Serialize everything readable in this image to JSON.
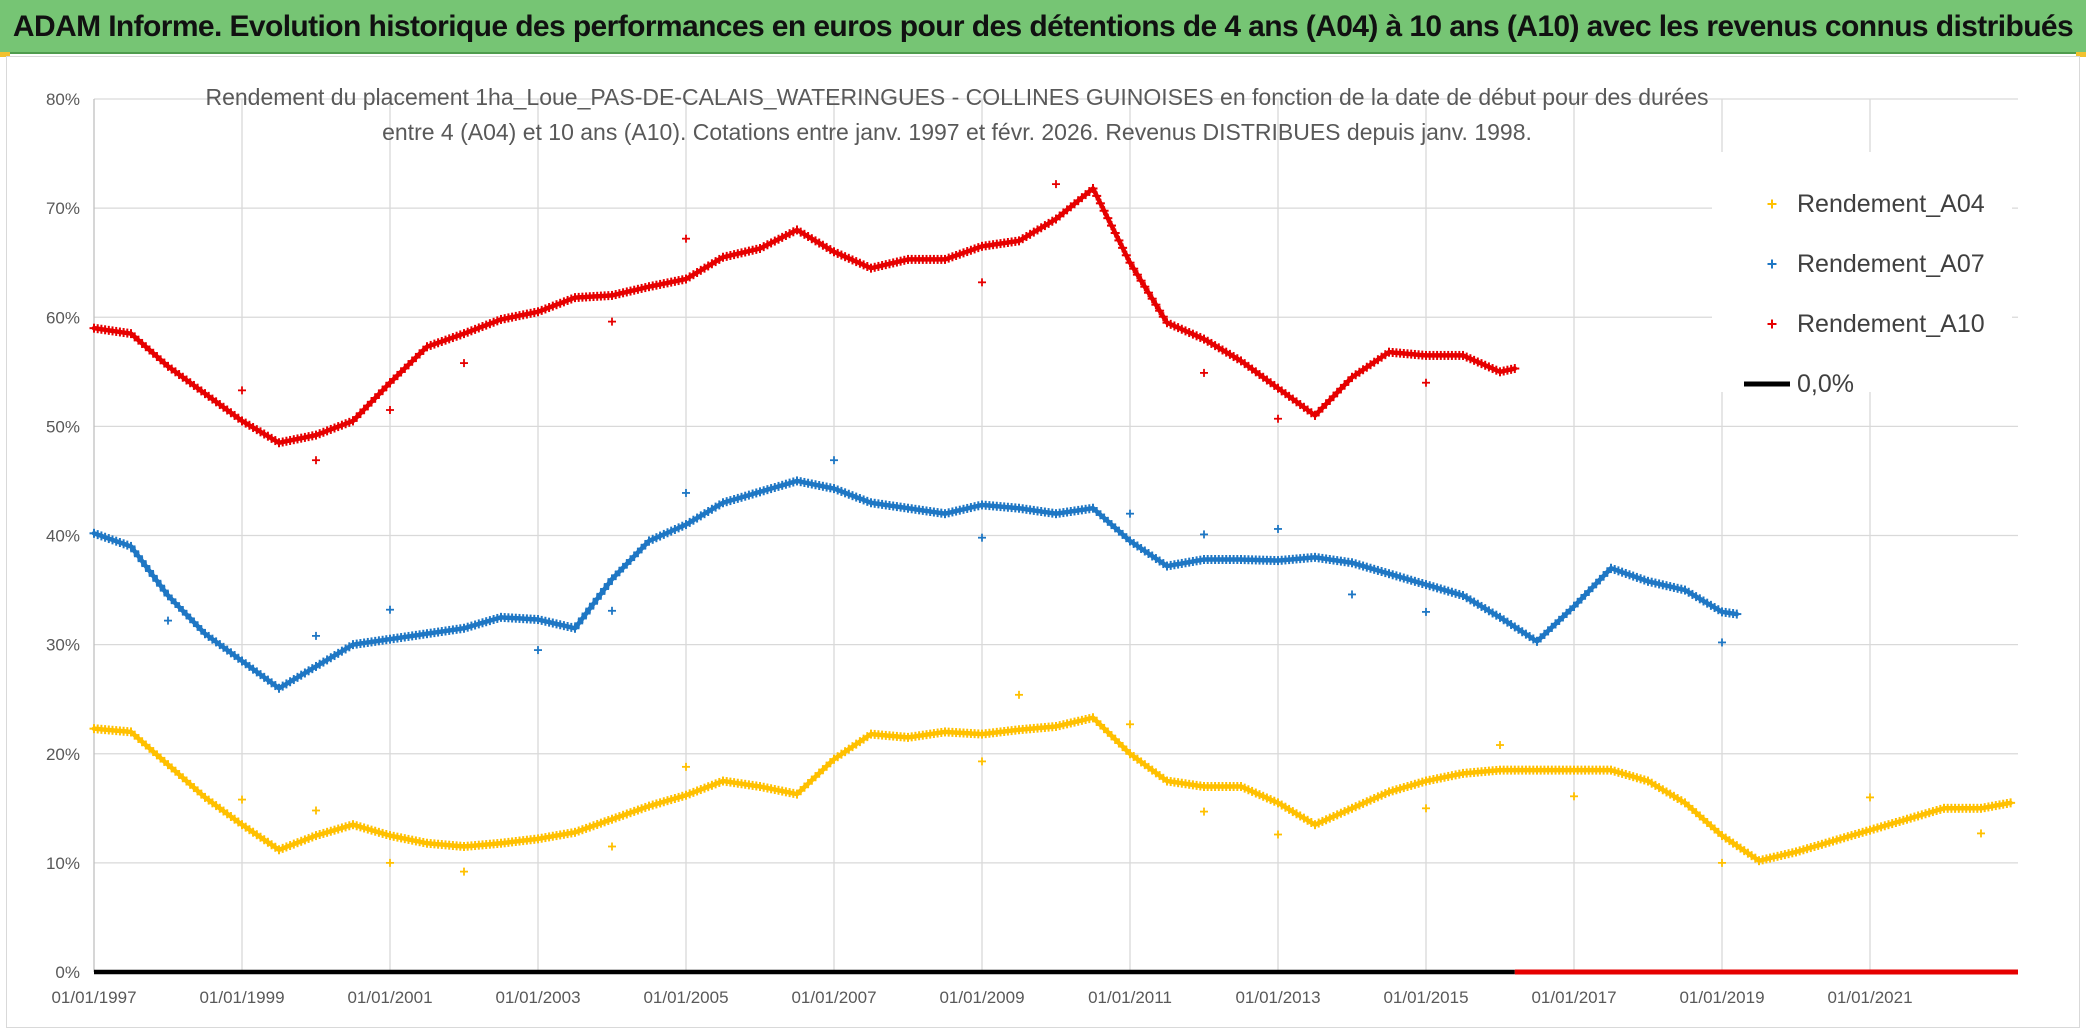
{
  "banner": {
    "title": "ADAM Informe. Evolution historique des performances en euros pour des détentions de 4 ans (A04) à 10 ans (A10) avec les revenus connus distribués"
  },
  "chart_data": {
    "type": "scatter",
    "title_line1": "Rendement du placement 1ha_Loue_PAS-DE-CALAIS_WATERINGUES - COLLINES GUINOISES en fonction de la date de début pour des durées",
    "title_line2": "entre 4 (A04) et 10 ans (A10). Cotations entre janv. 1997 et févr. 2026. Revenus DISTRIBUES depuis janv. 1998.",
    "x_range": [
      1997.0,
      2023.0
    ],
    "y_range": [
      0,
      80
    ],
    "y_ticks": [
      0,
      10,
      20,
      30,
      40,
      50,
      60,
      70,
      80
    ],
    "y_tick_labels": [
      "0%",
      "10%",
      "20%",
      "30%",
      "40%",
      "50%",
      "60%",
      "70%",
      "80%"
    ],
    "x_ticks": [
      1997,
      1999,
      2001,
      2003,
      2005,
      2007,
      2009,
      2011,
      2013,
      2015,
      2017,
      2019,
      2021
    ],
    "x_tick_labels": [
      "01/01/1997",
      "01/01/1999",
      "01/01/2001",
      "01/01/2003",
      "01/01/2005",
      "01/01/2007",
      "01/01/2009",
      "01/01/2011",
      "01/01/2013",
      "01/01/2015",
      "01/01/2017",
      "01/01/2019",
      "01/01/2021"
    ],
    "grid": true,
    "legend_position": "top-right",
    "series": [
      {
        "name": "Rendement_A04",
        "color": "#ffc000",
        "x": [
          1997.0,
          1997.5,
          1998.0,
          1998.5,
          1999.0,
          1999.5,
          2000.0,
          2000.5,
          2001.0,
          2001.5,
          2002.0,
          2002.5,
          2003.0,
          2003.5,
          2004.0,
          2004.5,
          2005.0,
          2005.5,
          2006.0,
          2006.5,
          2007.0,
          2007.5,
          2008.0,
          2008.5,
          2009.0,
          2009.5,
          2010.0,
          2010.5,
          2011.0,
          2011.5,
          2012.0,
          2012.5,
          2013.0,
          2013.5,
          2014.0,
          2014.5,
          2015.0,
          2015.5,
          2016.0,
          2016.5,
          2017.0,
          2017.5,
          2018.0,
          2018.5,
          2019.0,
          2019.5,
          2020.0,
          2020.5,
          2021.0,
          2021.5,
          2022.0,
          2022.5,
          2022.9
        ],
        "y": [
          22.3,
          22.0,
          19.0,
          16.0,
          13.5,
          11.2,
          12.5,
          13.5,
          12.5,
          11.8,
          11.5,
          11.8,
          12.2,
          12.8,
          14.0,
          15.2,
          16.2,
          17.5,
          17.0,
          16.3,
          19.5,
          21.8,
          21.5,
          22.0,
          21.8,
          22.2,
          22.5,
          23.3,
          20.0,
          17.5,
          17.0,
          17.0,
          15.5,
          13.5,
          15.0,
          16.5,
          17.5,
          18.2,
          18.5,
          18.5,
          18.5,
          18.5,
          17.5,
          15.5,
          12.5,
          10.2,
          11.0,
          12.0,
          13.0,
          14.0,
          15.0,
          15.0,
          15.5
        ],
        "outliers_x": [
          1999.0,
          2000.0,
          2001.0,
          2002.0,
          2004.0,
          2005.0,
          2009.0,
          2009.5,
          2011.0,
          2012.0,
          2013.0,
          2015.0,
          2016.0,
          2017.0,
          2019.0,
          2021.0,
          2022.5
        ],
        "outliers_y": [
          15.8,
          14.8,
          10.0,
          9.2,
          11.5,
          18.8,
          19.3,
          25.4,
          22.7,
          14.7,
          12.6,
          15.0,
          20.8,
          16.1,
          10.0,
          16.0,
          12.7
        ]
      },
      {
        "name": "Rendement_A07",
        "color": "#1f77c4",
        "x": [
          1997.0,
          1997.5,
          1998.0,
          1998.5,
          1999.0,
          1999.5,
          2000.0,
          2000.5,
          2001.0,
          2001.5,
          2002.0,
          2002.5,
          2003.0,
          2003.5,
          2004.0,
          2004.5,
          2005.0,
          2005.5,
          2006.0,
          2006.5,
          2007.0,
          2007.5,
          2008.0,
          2008.5,
          2009.0,
          2009.5,
          2010.0,
          2010.5,
          2011.0,
          2011.5,
          2012.0,
          2012.5,
          2013.0,
          2013.5,
          2014.0,
          2014.5,
          2015.0,
          2015.5,
          2016.0,
          2016.5,
          2017.0,
          2017.5,
          2018.0,
          2018.5,
          2019.0,
          2019.2
        ],
        "y": [
          40.2,
          39.0,
          34.5,
          31.0,
          28.5,
          26.0,
          28.0,
          30.0,
          30.5,
          31.0,
          31.5,
          32.5,
          32.3,
          31.5,
          36.0,
          39.5,
          41.0,
          43.0,
          44.0,
          45.0,
          44.3,
          43.0,
          42.5,
          42.0,
          42.8,
          42.5,
          42.0,
          42.5,
          39.5,
          37.2,
          37.8,
          37.8,
          37.7,
          38.0,
          37.5,
          36.5,
          35.5,
          34.5,
          32.5,
          30.3,
          33.5,
          37.0,
          35.8,
          35.0,
          33.0,
          32.8
        ],
        "outliers_x": [
          1998.0,
          2000.0,
          2001.0,
          2003.0,
          2004.0,
          2005.0,
          2007.0,
          2009.0,
          2011.0,
          2012.0,
          2013.0,
          2014.0,
          2015.0,
          2019.0
        ],
        "outliers_y": [
          32.2,
          30.8,
          33.2,
          29.5,
          33.1,
          43.9,
          46.9,
          39.8,
          42.0,
          40.1,
          40.6,
          34.6,
          33.0,
          30.2
        ]
      },
      {
        "name": "Rendement_A10",
        "color": "#e60000",
        "x": [
          1997.0,
          1997.5,
          1998.0,
          1998.5,
          1999.0,
          1999.5,
          2000.0,
          2000.5,
          2001.0,
          2001.5,
          2002.0,
          2002.5,
          2003.0,
          2003.5,
          2004.0,
          2004.5,
          2005.0,
          2005.5,
          2006.0,
          2006.5,
          2007.0,
          2007.5,
          2008.0,
          2008.5,
          2009.0,
          2009.5,
          2010.0,
          2010.5,
          2011.0,
          2011.5,
          2012.0,
          2012.5,
          2013.0,
          2013.5,
          2014.0,
          2014.5,
          2015.0,
          2015.5,
          2016.0,
          2016.2
        ],
        "y": [
          59.0,
          58.5,
          55.5,
          53.0,
          50.5,
          48.5,
          49.2,
          50.5,
          54.0,
          57.3,
          58.5,
          59.8,
          60.5,
          61.8,
          62.0,
          62.8,
          63.5,
          65.5,
          66.3,
          68.0,
          66.0,
          64.5,
          65.3,
          65.3,
          66.5,
          67.0,
          69.0,
          71.8,
          65.0,
          59.5,
          58.0,
          56.0,
          53.5,
          51.0,
          54.5,
          56.8,
          56.5,
          56.5,
          55.0,
          55.3
        ],
        "outliers_x": [
          1999.0,
          2000.0,
          2001.0,
          2002.0,
          2004.0,
          2005.0,
          2009.0,
          2010.0,
          2012.0,
          2013.0,
          2015.0
        ],
        "outliers_y": [
          53.3,
          46.9,
          51.5,
          55.8,
          59.6,
          67.2,
          63.2,
          72.2,
          54.9,
          50.7,
          54.0
        ]
      }
    ],
    "zero_line": {
      "name": "0,0%",
      "color": "#000000",
      "value": 0,
      "red_segment_x": [
        2016.2,
        2023.0
      ]
    }
  }
}
